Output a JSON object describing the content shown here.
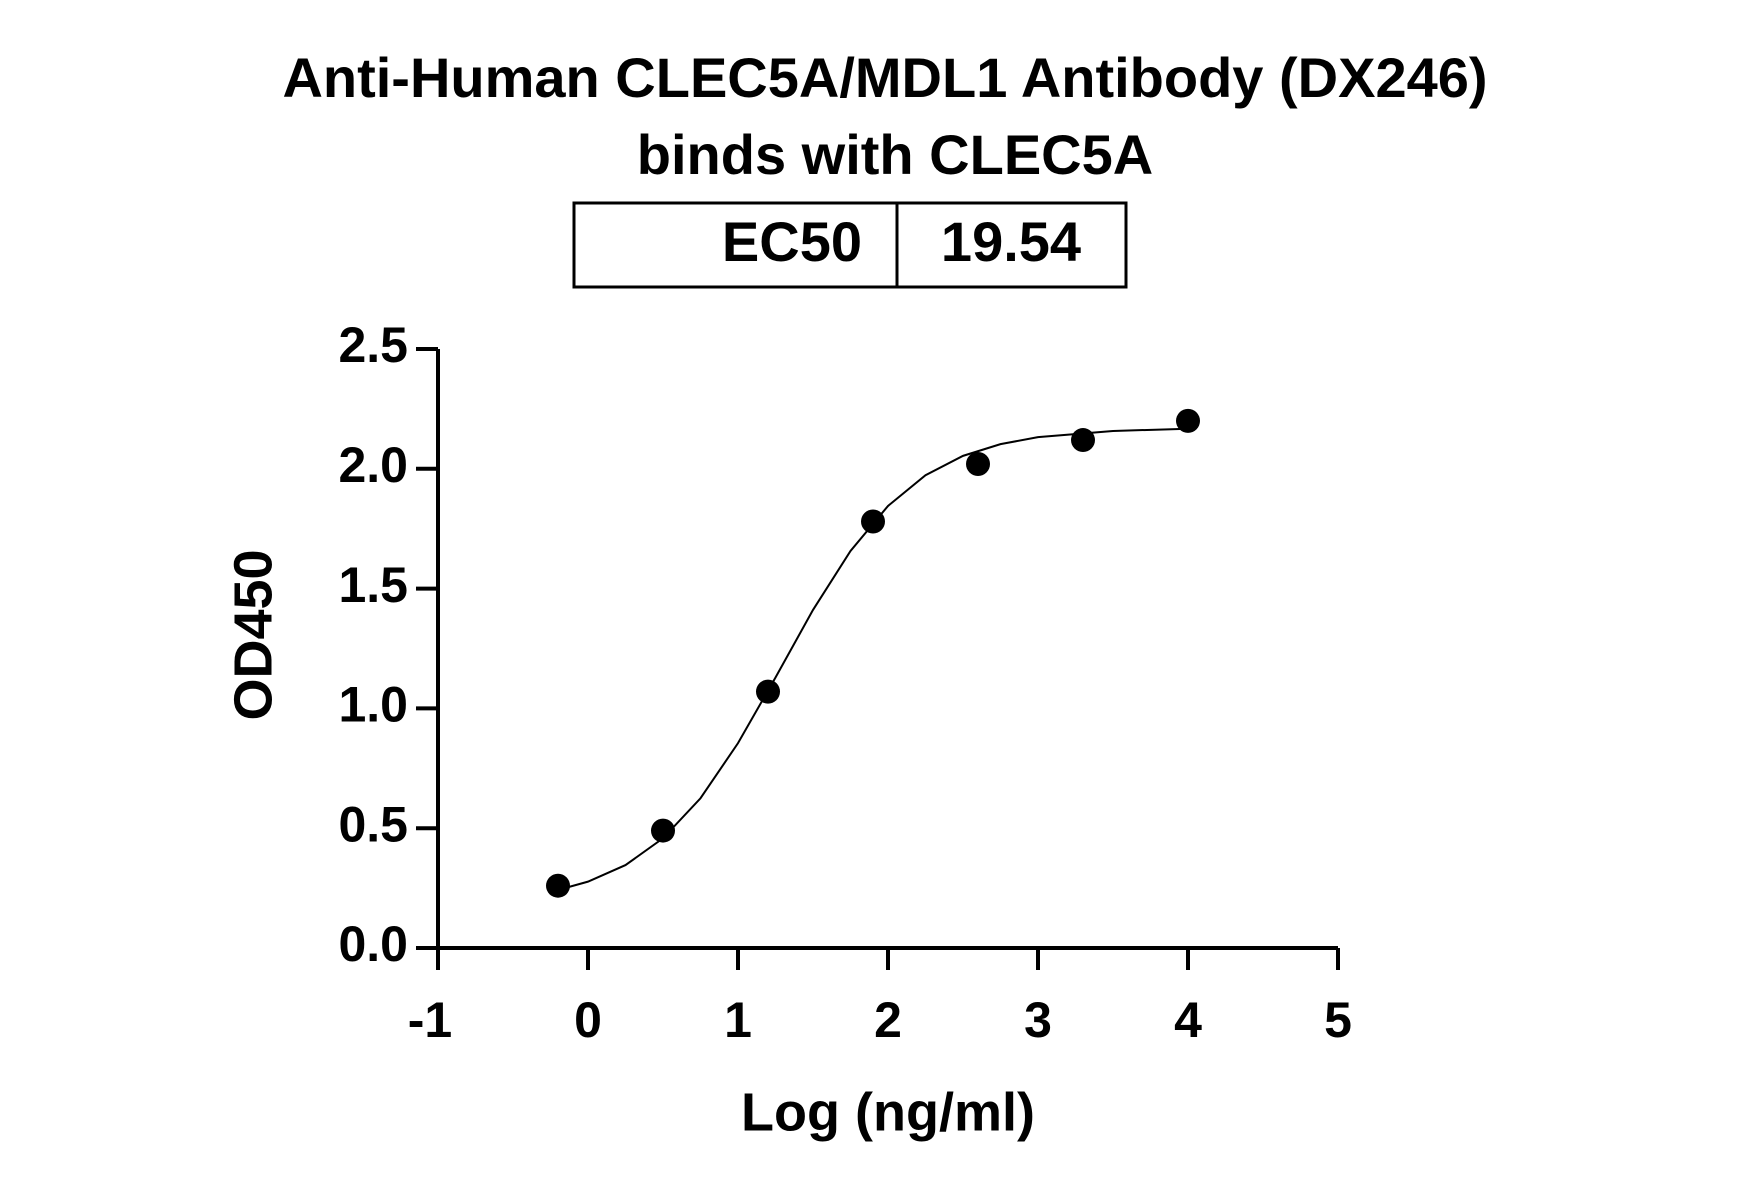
{
  "chart_data": {
    "type": "scatter",
    "title": [
      "Anti-Human CLEC5A/MDL1 Antibody (DX246)",
      "binds with CLEC5A"
    ],
    "ec50_table": {
      "label": "EC50",
      "value": 19.54
    },
    "x_label": "Log (ng/ml)",
    "y_label": "OD450",
    "xlim": [
      -1,
      5
    ],
    "xticks": [
      -1,
      0,
      1,
      2,
      3,
      4,
      5
    ],
    "ylim": [
      0,
      2.5
    ],
    "yticks": [
      {
        "value": 0,
        "label": "0.0"
      },
      {
        "value": 0.5,
        "label": "0.5"
      },
      {
        "value": 1,
        "label": "1.0"
      },
      {
        "value": 1.5,
        "label": "1.5"
      },
      {
        "value": 2,
        "label": "2.0"
      },
      {
        "value": 2.5,
        "label": "2.5"
      }
    ],
    "series": [
      {
        "style": "points",
        "color": "#000000",
        "x": [
          -0.2,
          0.5,
          1.2,
          1.9,
          2.6,
          3.3,
          4.0
        ],
        "values": [
          0.26,
          0.49,
          1.07,
          1.78,
          2.02,
          2.12,
          2.2
        ]
      },
      {
        "style": "line",
        "color": "#000000",
        "x": [
          -0.2,
          0,
          0.25,
          0.5,
          0.75,
          1,
          1.25,
          1.5,
          1.75,
          2,
          2.25,
          2.5,
          2.75,
          3,
          3.5,
          4
        ],
        "values": [
          0.242,
          0.277,
          0.346,
          0.458,
          0.625,
          0.855,
          1.129,
          1.411,
          1.657,
          1.845,
          1.973,
          2.054,
          2.103,
          2.132,
          2.158,
          2.167
        ]
      }
    ]
  }
}
